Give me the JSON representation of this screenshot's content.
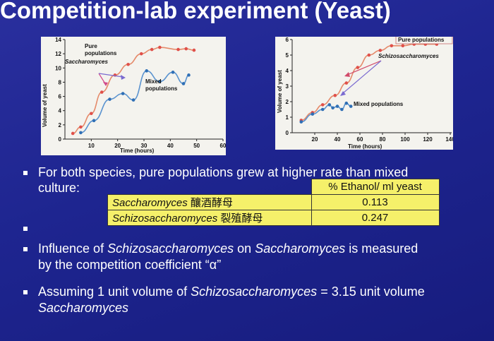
{
  "slide": {
    "title": "Competition-lab experiment (Yeast)"
  },
  "chart_left": {
    "ylabel": "Volume of yeast",
    "xlabel": "Time (hours)",
    "yticks": [
      "0",
      "2",
      "4",
      "6",
      "8",
      "10",
      "12",
      "14"
    ],
    "xticks": [
      "10",
      "20",
      "30",
      "40",
      "50",
      "60"
    ],
    "annotations": {
      "pure_line1": "Pure",
      "pure_line2": "populations",
      "species": "Saccharomyces",
      "mixed_line1": "Mixed",
      "mixed_line2": "populations"
    }
  },
  "chart_right": {
    "ylabel": "Volume of yeast",
    "xlabel": "Time (hours)",
    "yticks": [
      "0",
      "1",
      "2",
      "3",
      "4",
      "5",
      "6"
    ],
    "xticks": [
      "20",
      "40",
      "60",
      "80",
      "100",
      "120",
      "140"
    ],
    "annotations": {
      "pure": "Pure populations",
      "species": "Schizosaccharomyces",
      "mixed": "Mixed populations"
    }
  },
  "chart_data": [
    {
      "type": "scatter",
      "title": "",
      "xlabel": "Time (hours)",
      "ylabel": "Volume of yeast",
      "xlim": [
        0,
        60
      ],
      "ylim": [
        0,
        14
      ],
      "series": [
        {
          "name": "Pure populations",
          "color": "#e0504a",
          "x": [
            3,
            6,
            10,
            14,
            19,
            24,
            29,
            33,
            36,
            43,
            46,
            49
          ],
          "y": [
            0.8,
            1.7,
            3.6,
            6.6,
            9.0,
            10.5,
            12.0,
            12.6,
            12.9,
            12.6,
            12.7,
            12.5
          ]
        },
        {
          "name": "Mixed populations",
          "color": "#2f6fb5",
          "x": [
            6,
            11,
            17,
            22,
            26,
            31,
            36,
            41,
            45,
            47
          ],
          "y": [
            0.9,
            2.6,
            5.6,
            6.4,
            5.5,
            9.6,
            8.1,
            9.4,
            7.8,
            9.0
          ]
        }
      ]
    },
    {
      "type": "scatter",
      "title": "",
      "xlabel": "Time (hours)",
      "ylabel": "Volume of yeast",
      "xlim": [
        0,
        140
      ],
      "ylim": [
        0,
        6
      ],
      "series": [
        {
          "name": "Pure populations",
          "color": "#e0504a",
          "x": [
            8,
            18,
            27,
            38,
            48,
            58,
            68,
            78,
            88,
            98,
            108,
            118,
            128
          ],
          "y": [
            0.8,
            1.3,
            1.8,
            2.4,
            3.2,
            4.2,
            5.0,
            5.3,
            5.6,
            5.6,
            5.7,
            5.7,
            5.7
          ]
        },
        {
          "name": "Mixed populations",
          "color": "#2f6fb5",
          "x": [
            8,
            18,
            27,
            33,
            36,
            40,
            44,
            48,
            52
          ],
          "y": [
            0.7,
            1.2,
            1.5,
            1.8,
            1.6,
            1.7,
            1.5,
            1.9,
            1.7
          ]
        }
      ]
    }
  ],
  "bullets": {
    "b1_line1": "For both species, pure populations grew at higher rate than mixed",
    "b1_line2": "culture:",
    "b2_pre": "Influence of ",
    "b2_species1": "Schizosaccharomyces",
    "b2_mid": " on ",
    "b2_species2": "Saccharomyces",
    "b2_post": " is measured",
    "b2_line2": "by the competition coefficient “α”",
    "b3_pre": "Assuming 1 unit volume of ",
    "b3_species1": "Schizosaccharomyces",
    "b3_post": " = 3.15 unit volume",
    "b3_line2": "Saccharomyces"
  },
  "table": {
    "header": "% Ethanol/ ml yeast",
    "rows": [
      {
        "species": "Saccharomyces",
        "chinese": "釀酒酵母",
        "value": "0.113"
      },
      {
        "species": "Schizosaccharomyces",
        "chinese": "裂殖酵母",
        "value": "0.247"
      }
    ]
  }
}
